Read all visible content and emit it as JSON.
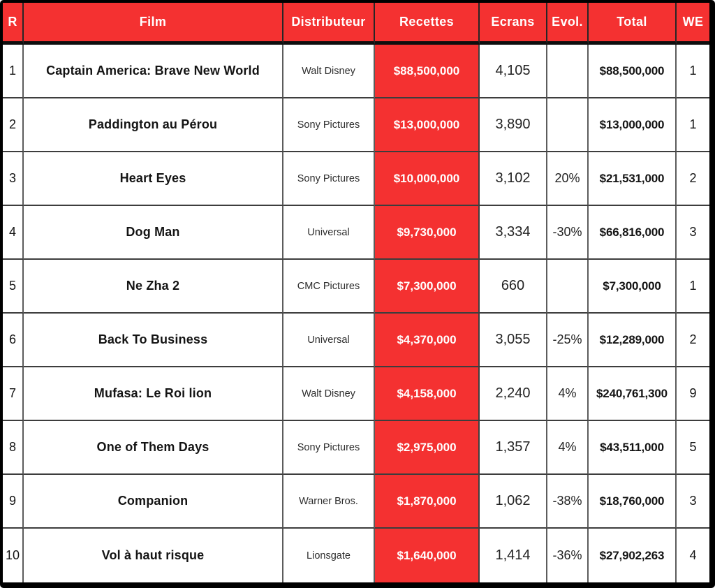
{
  "colors": {
    "accent_red": "#F43131",
    "header_text": "#FFFFFF",
    "body_text": "#141414",
    "grid_line": "#3D3D3D",
    "frame": "#000000"
  },
  "chart_data": {
    "type": "table",
    "columns": [
      "R",
      "Film",
      "Distributeur",
      "Recettes",
      "Ecrans",
      "Evol.",
      "Total",
      "WE"
    ],
    "rows": [
      {
        "rank": "1",
        "film": "Captain America: Brave New World",
        "distributeur": "Walt Disney",
        "recettes": "$88,500,000",
        "ecrans": "4,105",
        "evol": "",
        "total": "$88,500,000",
        "we": "1"
      },
      {
        "rank": "2",
        "film": "Paddington au Pérou",
        "distributeur": "Sony Pictures",
        "recettes": "$13,000,000",
        "ecrans": "3,890",
        "evol": "",
        "total": "$13,000,000",
        "we": "1"
      },
      {
        "rank": "3",
        "film": "Heart Eyes",
        "distributeur": "Sony Pictures",
        "recettes": "$10,000,000",
        "ecrans": "3,102",
        "evol": "20%",
        "total": "$21,531,000",
        "we": "2"
      },
      {
        "rank": "4",
        "film": "Dog Man",
        "distributeur": "Universal",
        "recettes": "$9,730,000",
        "ecrans": "3,334",
        "evol": "-30%",
        "total": "$66,816,000",
        "we": "3"
      },
      {
        "rank": "5",
        "film": "Ne Zha 2",
        "distributeur": "CMC Pictures",
        "recettes": "$7,300,000",
        "ecrans": "660",
        "evol": "",
        "total": "$7,300,000",
        "we": "1"
      },
      {
        "rank": "6",
        "film": "Back To Business",
        "distributeur": "Universal",
        "recettes": "$4,370,000",
        "ecrans": "3,055",
        "evol": "-25%",
        "total": "$12,289,000",
        "we": "2"
      },
      {
        "rank": "7",
        "film": "Mufasa: Le Roi lion",
        "distributeur": "Walt Disney",
        "recettes": "$4,158,000",
        "ecrans": "2,240",
        "evol": "4%",
        "total": "$240,761,300",
        "we": "9"
      },
      {
        "rank": "8",
        "film": "One of Them Days",
        "distributeur": "Sony Pictures",
        "recettes": "$2,975,000",
        "ecrans": "1,357",
        "evol": "4%",
        "total": "$43,511,000",
        "we": "5"
      },
      {
        "rank": "9",
        "film": "Companion",
        "distributeur": "Warner Bros.",
        "recettes": "$1,870,000",
        "ecrans": "1,062",
        "evol": "-38%",
        "total": "$18,760,000",
        "we": "3"
      },
      {
        "rank": "10",
        "film": "Vol à haut risque",
        "distributeur": "Lionsgate",
        "recettes": "$1,640,000",
        "ecrans": "1,414",
        "evol": "-36%",
        "total": "$27,902,263",
        "we": "4"
      }
    ]
  }
}
